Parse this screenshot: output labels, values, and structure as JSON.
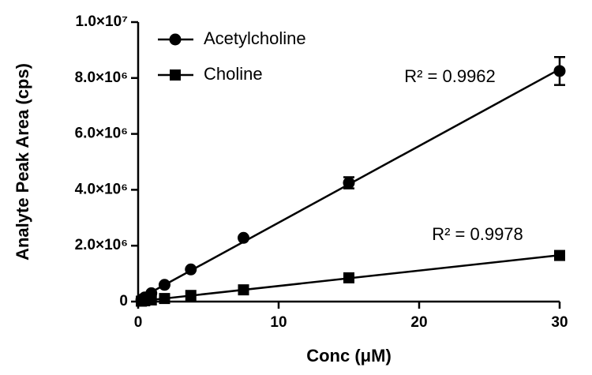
{
  "chart_data": {
    "type": "scatter",
    "xlabel": "Conc (μM)",
    "ylabel": "Analyte Peak Area (cps)",
    "xlim": [
      0,
      30
    ],
    "xticks": [
      0,
      10,
      20,
      30
    ],
    "ylim": [
      0,
      10000000
    ],
    "yticks": [
      0,
      {
        "value": 2000000,
        "label": "2.0×10⁶"
      },
      {
        "value": 4000000,
        "label": "4.0×10⁶"
      },
      {
        "value": 6000000,
        "label": "6.0×10⁶"
      },
      {
        "value": 8000000,
        "label": "8.0×10⁶"
      },
      {
        "value": 10000000,
        "label": "1.0×10⁷"
      }
    ],
    "legend": "upper left",
    "series": [
      {
        "name": "Acetylcholine",
        "color": "#000000",
        "marker": "circle",
        "x": [
          0.23,
          0.47,
          0.94,
          1.88,
          3.75,
          7.5,
          15,
          30
        ],
        "values": [
          70000,
          150000,
          300000,
          600000,
          1150000,
          2280000,
          4250000,
          8250000
        ],
        "errors": [
          null,
          null,
          null,
          null,
          null,
          null,
          200000,
          500000
        ]
      },
      {
        "name": "Choline",
        "color": "#000000",
        "marker": "square",
        "x": [
          0.23,
          0.47,
          0.94,
          1.88,
          3.75,
          7.5,
          15,
          30
        ],
        "values": [
          15000,
          30000,
          60000,
          110000,
          220000,
          420000,
          850000,
          1650000
        ],
        "errors": [
          null,
          null,
          null,
          null,
          null,
          null,
          null,
          null
        ]
      }
    ],
    "annotations": [
      "R² = 0.9962",
      "R² = 0.9978"
    ]
  }
}
